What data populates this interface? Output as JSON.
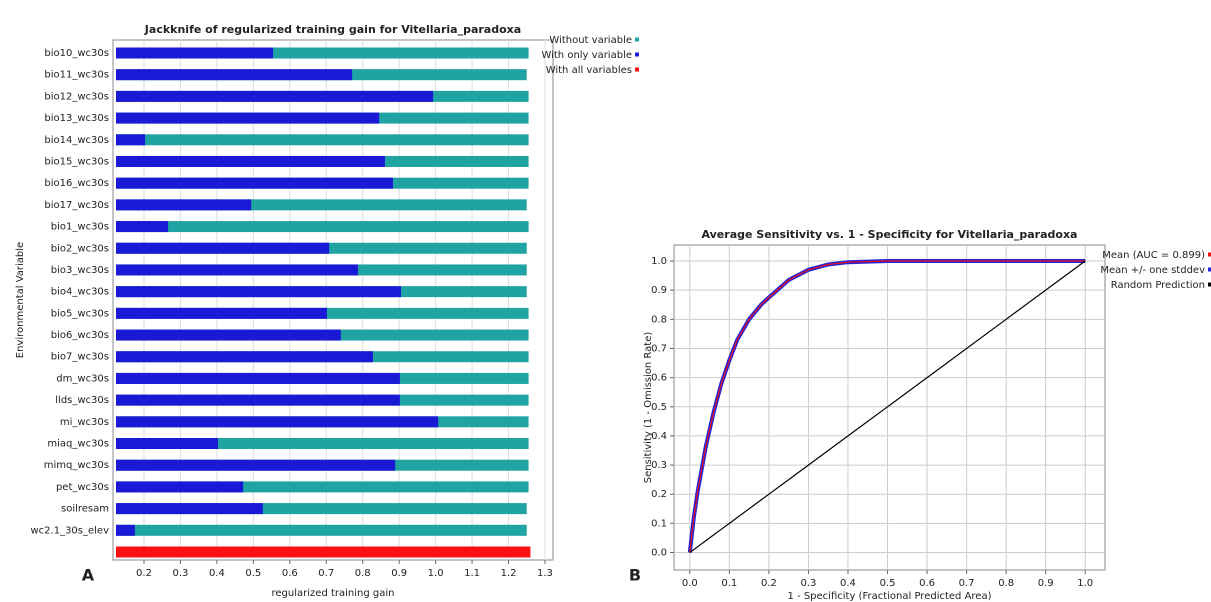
{
  "chart_data": [
    {
      "type": "bar",
      "orientation": "horizontal",
      "panel_label": "A",
      "title": "Jackknife of regularized training gain for Vitellaria_paradoxa",
      "xlabel": "regularized training gain",
      "ylabel": "Environmental Variable",
      "categories": [
        "bio10_wc30s",
        "bio11_wc30s",
        "bio12_wc30s",
        "bio13_wc30s",
        "bio14_wc30s",
        "bio15_wc30s",
        "bio16_wc30s",
        "bio17_wc30s",
        "bio1_wc30s",
        "bio2_wc30s",
        "bio3_wc30s",
        "bio4_wc30s",
        "bio5_wc30s",
        "bio6_wc30s",
        "bio7_wc30s",
        "dm_wc30s",
        "llds_wc30s",
        "mi_wc30s",
        "miaq_wc30s",
        "mimq_wc30s",
        "pet_wc30s",
        "soilresam",
        "wc2.1_30s_elev",
        null
      ],
      "series": [
        {
          "name": "Without variable",
          "color": "#1fa3a3",
          "values": [
            1.255,
            1.25,
            1.255,
            1.255,
            1.255,
            1.255,
            1.255,
            1.25,
            1.255,
            1.25,
            1.25,
            1.25,
            1.255,
            1.255,
            1.255,
            1.255,
            1.255,
            1.255,
            1.255,
            1.255,
            1.255,
            1.25,
            1.25,
            null
          ]
        },
        {
          "name": "With only variable",
          "color": "#1a1ad6",
          "values": [
            0.554,
            0.771,
            0.993,
            0.845,
            0.203,
            0.861,
            0.883,
            0.494,
            0.266,
            0.708,
            0.787,
            0.905,
            0.702,
            0.74,
            0.828,
            0.902,
            0.902,
            1.007,
            0.403,
            0.889,
            0.472,
            0.526,
            0.175,
            null
          ]
        },
        {
          "name": "With all variables",
          "color": "#ff1010",
          "values": [
            null,
            null,
            null,
            null,
            null,
            null,
            null,
            null,
            null,
            null,
            null,
            null,
            null,
            null,
            null,
            null,
            null,
            null,
            null,
            null,
            null,
            null,
            null,
            1.26
          ]
        }
      ],
      "xlim": [
        0.115,
        1.322
      ],
      "xticks": [
        0.2,
        0.3,
        0.4,
        0.5,
        0.6,
        0.7,
        0.8,
        0.9,
        {
          "value": 1,
          "label": "1.0"
        },
        1.1,
        1.2,
        1.3
      ],
      "grid": true,
      "legend": "right"
    },
    {
      "type": "line",
      "panel_label": "B",
      "title": "Average Sensitivity vs. 1 - Specificity for Vitellaria_paradoxa",
      "xlabel": "1 - Specificity (Fractional Predicted Area)",
      "ylabel": "Sensitivity (1 - Omission Rate)",
      "x": [
        0,
        0.01,
        0.02,
        0.04,
        0.06,
        0.08,
        0.1,
        0.12,
        0.15,
        0.18,
        0.2,
        0.25,
        0.3,
        0.35,
        0.4,
        0.5,
        0.6,
        0.8,
        1
      ],
      "series": [
        {
          "name": "Mean +/- one stddev",
          "color": "#2222dd",
          "width": 4,
          "values": [
            0,
            0.12,
            0.21,
            0.36,
            0.48,
            0.58,
            0.66,
            0.73,
            0.8,
            0.85,
            0.875,
            0.935,
            0.97,
            0.988,
            0.996,
            1,
            1,
            1,
            1
          ]
        },
        {
          "name": "Mean (AUC = 0.899)",
          "color": "#ee1111",
          "width": 1.2,
          "values": [
            0,
            0.12,
            0.21,
            0.36,
            0.48,
            0.58,
            0.66,
            0.73,
            0.8,
            0.85,
            0.875,
            0.935,
            0.97,
            0.988,
            0.996,
            1,
            1,
            1,
            1
          ]
        },
        {
          "name": "Random Prediction",
          "color": "#000000",
          "width": 1.2,
          "values": [
            0,
            0.01,
            0.02,
            0.04,
            0.06,
            0.08,
            0.1,
            0.12,
            0.15,
            0.18,
            0.2,
            0.25,
            0.3,
            0.35,
            0.4,
            0.5,
            0.6,
            0.8,
            1
          ]
        }
      ],
      "legend_order": [
        1,
        0,
        2
      ],
      "xlim": [
        -0.04,
        1.05
      ],
      "ylim": [
        -0.06,
        1.055
      ],
      "xticks": [
        {
          "value": 0,
          "label": "0.0"
        },
        0.1,
        0.2,
        0.3,
        0.4,
        0.5,
        0.6,
        0.7,
        0.8,
        0.9,
        {
          "value": 1,
          "label": "1.0"
        }
      ],
      "yticks": [
        {
          "value": 0,
          "label": "0.0"
        },
        0.1,
        0.2,
        0.3,
        0.4,
        0.5,
        0.6,
        0.7,
        0.8,
        0.9,
        {
          "value": 1,
          "label": "1.0"
        }
      ],
      "grid": true,
      "legend": "right"
    }
  ]
}
